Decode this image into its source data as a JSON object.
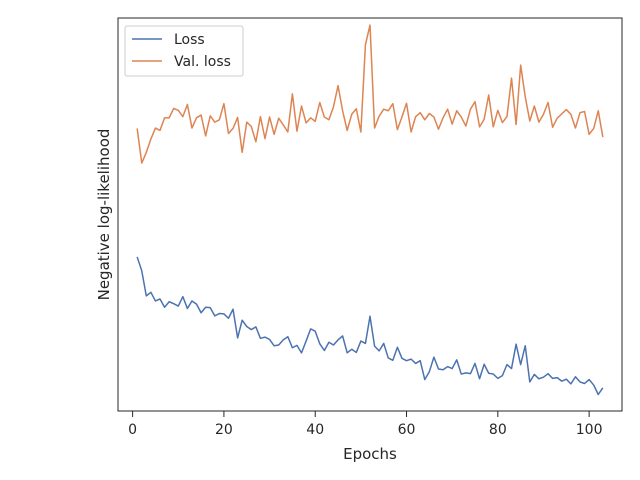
{
  "chart_data": {
    "type": "line",
    "title": "",
    "xlabel": "Epochs",
    "ylabel": "Negative log-likelihood",
    "xlim": [
      -3.2,
      107.2
    ],
    "ylim": [
      0,
      1
    ],
    "x_ticks": [
      0,
      20,
      40,
      60,
      80,
      100
    ],
    "y_ticks_visible": false,
    "grid": false,
    "legend": "top-left",
    "series": [
      {
        "name": "Loss",
        "color": "#4c72b0",
        "x": [
          1,
          2,
          3,
          4,
          5,
          6,
          7,
          8,
          9,
          10,
          11,
          12,
          13,
          14,
          15,
          16,
          17,
          18,
          19,
          20,
          21,
          22,
          23,
          24,
          25,
          26,
          27,
          28,
          29,
          30,
          31,
          32,
          33,
          34,
          35,
          36,
          37,
          38,
          39,
          40,
          41,
          42,
          43,
          44,
          45,
          46,
          47,
          48,
          49,
          50,
          51,
          52,
          53,
          54,
          55,
          56,
          57,
          58,
          59,
          60,
          61,
          62,
          63,
          64,
          65,
          66,
          67,
          68,
          69,
          70,
          71,
          72,
          73,
          74,
          75,
          76,
          77,
          78,
          79,
          80,
          81,
          82,
          83,
          84,
          85,
          86,
          87,
          88,
          89,
          90,
          91,
          92,
          93,
          94,
          95,
          96,
          97,
          98,
          99,
          100,
          101,
          102,
          103
        ],
        "y": [
          0.392,
          0.357,
          0.293,
          0.302,
          0.28,
          0.285,
          0.264,
          0.278,
          0.273,
          0.267,
          0.291,
          0.261,
          0.28,
          0.272,
          0.25,
          0.264,
          0.263,
          0.242,
          0.248,
          0.247,
          0.236,
          0.259,
          0.186,
          0.231,
          0.215,
          0.207,
          0.214,
          0.185,
          0.188,
          0.182,
          0.166,
          0.168,
          0.181,
          0.189,
          0.161,
          0.167,
          0.148,
          0.178,
          0.209,
          0.203,
          0.171,
          0.154,
          0.175,
          0.168,
          0.181,
          0.191,
          0.148,
          0.157,
          0.149,
          0.178,
          0.172,
          0.241,
          0.165,
          0.153,
          0.172,
          0.135,
          0.129,
          0.162,
          0.134,
          0.128,
          0.132,
          0.121,
          0.128,
          0.08,
          0.1,
          0.137,
          0.107,
          0.105,
          0.113,
          0.108,
          0.13,
          0.094,
          0.097,
          0.095,
          0.121,
          0.082,
          0.119,
          0.096,
          0.094,
          0.083,
          0.09,
          0.118,
          0.108,
          0.17,
          0.118,
          0.166,
          0.074,
          0.093,
          0.082,
          0.086,
          0.095,
          0.083,
          0.085,
          0.076,
          0.081,
          0.069,
          0.087,
          0.074,
          0.07,
          0.08,
          0.066,
          0.042,
          0.059
        ]
      },
      {
        "name": "Val. loss",
        "color": "#dd8452",
        "x": [
          1,
          2,
          3,
          4,
          5,
          6,
          7,
          8,
          9,
          10,
          11,
          12,
          13,
          14,
          15,
          16,
          17,
          18,
          19,
          20,
          21,
          22,
          23,
          24,
          25,
          26,
          27,
          28,
          29,
          30,
          31,
          32,
          33,
          34,
          35,
          36,
          37,
          38,
          39,
          40,
          41,
          42,
          43,
          44,
          45,
          46,
          47,
          48,
          49,
          50,
          51,
          52,
          53,
          54,
          55,
          56,
          57,
          58,
          59,
          60,
          61,
          62,
          63,
          64,
          65,
          66,
          67,
          68,
          69,
          70,
          71,
          72,
          73,
          74,
          75,
          76,
          77,
          78,
          79,
          80,
          81,
          82,
          83,
          84,
          85,
          86,
          87,
          88,
          89,
          90,
          91,
          92,
          93,
          94,
          95,
          96,
          97,
          98,
          99,
          100,
          101,
          102,
          103
        ],
        "y": [
          0.719,
          0.631,
          0.658,
          0.692,
          0.72,
          0.714,
          0.746,
          0.746,
          0.77,
          0.765,
          0.749,
          0.78,
          0.72,
          0.746,
          0.753,
          0.7,
          0.751,
          0.735,
          0.741,
          0.782,
          0.706,
          0.719,
          0.747,
          0.658,
          0.735,
          0.724,
          0.685,
          0.749,
          0.693,
          0.748,
          0.704,
          0.745,
          0.728,
          0.71,
          0.807,
          0.712,
          0.776,
          0.733,
          0.746,
          0.737,
          0.785,
          0.748,
          0.741,
          0.774,
          0.828,
          0.764,
          0.714,
          0.755,
          0.769,
          0.71,
          0.932,
          0.982,
          0.72,
          0.75,
          0.768,
          0.764,
          0.782,
          0.716,
          0.748,
          0.783,
          0.71,
          0.749,
          0.759,
          0.741,
          0.757,
          0.748,
          0.717,
          0.746,
          0.768,
          0.73,
          0.764,
          0.748,
          0.725,
          0.768,
          0.787,
          0.723,
          0.742,
          0.804,
          0.723,
          0.765,
          0.734,
          0.749,
          0.847,
          0.729,
          0.88,
          0.8,
          0.738,
          0.776,
          0.735,
          0.755,
          0.785,
          0.722,
          0.745,
          0.756,
          0.767,
          0.755,
          0.72,
          0.759,
          0.762,
          0.704,
          0.719,
          0.764,
          0.697
        ]
      }
    ]
  }
}
